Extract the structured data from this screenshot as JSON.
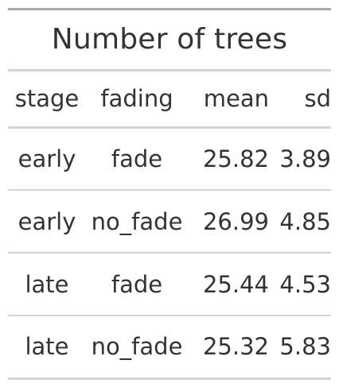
{
  "table": {
    "title": "Number of trees",
    "columns": [
      "stage",
      "fading",
      "mean",
      "sd"
    ],
    "rows": [
      {
        "stage": "early",
        "fading": "fade",
        "mean": "25.82",
        "sd": "3.89"
      },
      {
        "stage": "early",
        "fading": "no_fade",
        "mean": "26.99",
        "sd": "4.85"
      },
      {
        "stage": "late",
        "fading": "fade",
        "mean": "25.44",
        "sd": "4.53"
      },
      {
        "stage": "late",
        "fading": "no_fade",
        "mean": "25.32",
        "sd": "5.83"
      }
    ]
  }
}
